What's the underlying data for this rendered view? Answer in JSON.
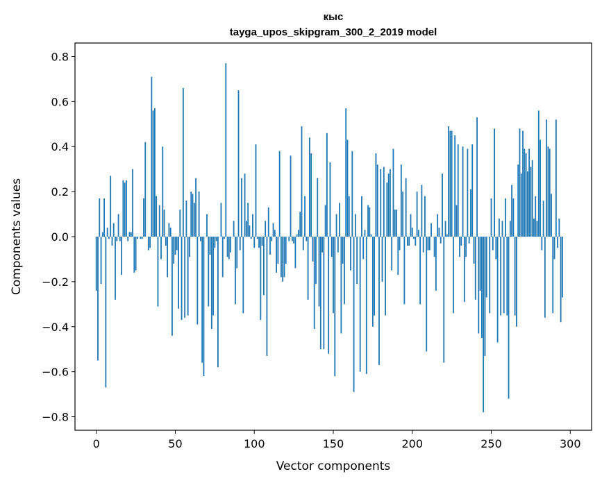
{
  "chart_data": {
    "type": "bar",
    "title_line1": "кыс",
    "title_line2": "tayga_upos_skipgram_300_2_2019 model",
    "xlabel": "Vector components",
    "ylabel": "Components values",
    "xlim": [
      -13.5,
      313.5
    ],
    "ylim": [
      -0.86,
      0.86
    ],
    "xticks": [
      0,
      50,
      100,
      150,
      200,
      250,
      300
    ],
    "yticks": [
      -0.8,
      -0.6,
      -0.4,
      -0.2,
      0.0,
      0.2,
      0.4,
      0.6,
      0.8
    ],
    "bar_color": "#1f77b4",
    "values": [
      -0.24,
      -0.55,
      0.17,
      -0.21,
      0.02,
      0.17,
      -0.67,
      0.04,
      -0.01,
      0.27,
      -0.04,
      0.06,
      -0.28,
      -0.02,
      0.1,
      -0.02,
      -0.17,
      0.25,
      0.24,
      0.25,
      -0.02,
      0.02,
      0.02,
      0.3,
      -0.16,
      -0.15,
      -0.01,
      0.0,
      -0.01,
      -0.01,
      0.17,
      0.42,
      0.0,
      -0.06,
      -0.05,
      0.71,
      0.56,
      0.57,
      0.18,
      -0.31,
      0.14,
      -0.1,
      0.4,
      0.12,
      -0.04,
      -0.18,
      0.06,
      0.04,
      -0.44,
      -0.12,
      -0.08,
      -0.06,
      -0.32,
      0.12,
      -0.37,
      0.66,
      -0.36,
      0.16,
      -0.35,
      -0.09,
      0.2,
      0.19,
      0.15,
      0.26,
      -0.39,
      0.2,
      -0.02,
      -0.56,
      -0.62,
      0.0,
      0.1,
      -0.31,
      -0.08,
      -0.41,
      -0.35,
      -0.05,
      -0.02,
      -0.58,
      0.0,
      0.15,
      -0.18,
      -0.01,
      0.77,
      -0.09,
      -0.1,
      -0.07,
      0.0,
      0.07,
      -0.3,
      -0.14,
      0.65,
      -0.06,
      0.26,
      -0.34,
      0.28,
      0.07,
      0.15,
      0.05,
      -0.01,
      0.1,
      -0.05,
      0.41,
      -0.01,
      -0.05,
      -0.37,
      -0.04,
      -0.26,
      0.07,
      -0.53,
      0.13,
      -0.08,
      -0.02,
      0.06,
      0.03,
      -0.16,
      -0.12,
      0.38,
      -0.18,
      -0.2,
      -0.18,
      -0.12,
      0.0,
      -0.02,
      0.36,
      -0.02,
      -0.03,
      -0.14,
      0.01,
      0.03,
      0.11,
      0.49,
      -0.06,
      0.18,
      -0.02,
      -0.28,
      0.44,
      0.37,
      -0.11,
      -0.41,
      -0.21,
      0.26,
      -0.31,
      -0.5,
      -0.07,
      -0.5,
      0.14,
      0.46,
      -0.52,
      0.33,
      -0.09,
      -0.34,
      -0.62,
      0.1,
      -0.07,
      0.15,
      -0.43,
      -0.12,
      -0.3,
      0.57,
      0.43,
      0.18,
      -0.15,
      0.38,
      -0.69,
      0.1,
      -0.21,
      0.0,
      -0.6,
      0.18,
      -0.1,
      0.03,
      -0.61,
      0.14,
      0.13,
      0.01,
      -0.4,
      -0.35,
      0.37,
      0.32,
      -0.57,
      0.3,
      -0.2,
      0.31,
      -0.35,
      0.24,
      0.28,
      0.3,
      -0.15,
      0.39,
      0.12,
      0.12,
      -0.17,
      -0.06,
      0.32,
      0.2,
      -0.3,
      0.26,
      -0.04,
      -0.04,
      0.1,
      0.04,
      -0.01,
      -0.04,
      0.2,
      0.03,
      -0.3,
      0.23,
      -0.07,
      0.18,
      -0.51,
      -0.06,
      -0.06,
      0.06,
      0.0,
      -0.09,
      -0.24,
      0.1,
      0.04,
      -0.03,
      0.28,
      -0.56,
      0.07,
      0.01,
      0.49,
      0.47,
      0.47,
      -0.34,
      0.45,
      0.14,
      0.41,
      -0.09,
      -0.04,
      0.4,
      -0.29,
      -0.09,
      0.39,
      -0.03,
      0.21,
      0.41,
      -0.12,
      -0.28,
      0.53,
      -0.43,
      -0.24,
      -0.45,
      -0.78,
      -0.53,
      -0.27,
      0.0,
      -0.34,
      0.17,
      -0.06,
      0.48,
      -0.1,
      -0.47,
      0.08,
      -0.35,
      0.07,
      -0.34,
      0.17,
      -0.35,
      -0.72,
      0.07,
      0.23,
      0.17,
      -0.35,
      -0.4,
      0.32,
      0.48,
      0.28,
      0.47,
      0.39,
      0.37,
      0.29,
      0.39,
      0.31,
      0.34,
      0.08,
      0.18,
      0.07,
      0.56,
      0.43,
      -0.06,
      0.16,
      -0.36,
      0.52,
      0.4,
      0.39,
      0.19,
      -0.34,
      -0.1,
      0.52,
      -0.05,
      0.08,
      -0.38,
      -0.27
    ]
  }
}
